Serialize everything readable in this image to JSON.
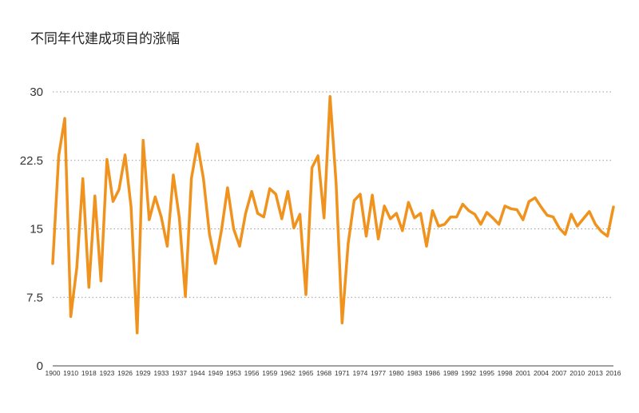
{
  "chart_data": {
    "type": "line",
    "title": "不同年代建成项目的涨幅",
    "xlabel": "",
    "ylabel": "",
    "ylim": [
      0,
      30
    ],
    "yticks": [
      0,
      7.5,
      15,
      22.5,
      30
    ],
    "ytick_labels": [
      "0",
      "7.5",
      "15",
      "22.5",
      "30"
    ],
    "xtick_labels": [
      "1900",
      "1910",
      "1918",
      "1923",
      "1926",
      "1929",
      "1933",
      "1937",
      "1944",
      "1949",
      "1953",
      "1956",
      "1959",
      "1962",
      "1965",
      "1968",
      "1971",
      "1974",
      "1977",
      "1980",
      "1983",
      "1986",
      "1989",
      "1992",
      "1995",
      "1998",
      "2001",
      "2004",
      "2007",
      "2010",
      "2013",
      "2016"
    ],
    "grid": true,
    "series": [
      {
        "color": "#f0931e",
        "values": [
          11.2,
          23,
          27.1,
          5.4,
          10.8,
          20.5,
          8.6,
          18.6,
          9.3,
          22.6,
          18,
          19.3,
          23.1,
          17.4,
          3.6,
          24.7,
          16,
          18.5,
          16.3,
          13.1,
          20.9,
          16.2,
          7.6,
          20.5,
          24.3,
          20.5,
          14.4,
          11.2,
          14.9,
          19.5,
          15,
          13.1,
          16.7,
          19.1,
          16.7,
          16.3,
          19.4,
          18.8,
          16.1,
          19.1,
          15.1,
          16.6,
          7.8,
          21.7,
          23,
          16.2,
          29.5,
          20,
          4.7,
          13.4,
          18.1,
          18.8,
          14.2,
          18.7,
          13.9,
          17.5,
          16.1,
          16.7,
          14.8,
          17.9,
          16.2,
          16.7,
          13.1,
          17,
          15.3,
          15.5,
          16.3,
          16.3,
          17.7,
          17,
          16.6,
          15.5,
          16.8,
          16.2,
          15.5,
          17.5,
          17.2,
          17.1,
          16,
          18,
          18.4,
          17.4,
          16.5,
          16.3,
          15.1,
          14.4,
          16.6,
          15.3,
          16.1,
          16.9,
          15.5,
          14.7,
          14.2,
          17.4
        ]
      }
    ]
  }
}
